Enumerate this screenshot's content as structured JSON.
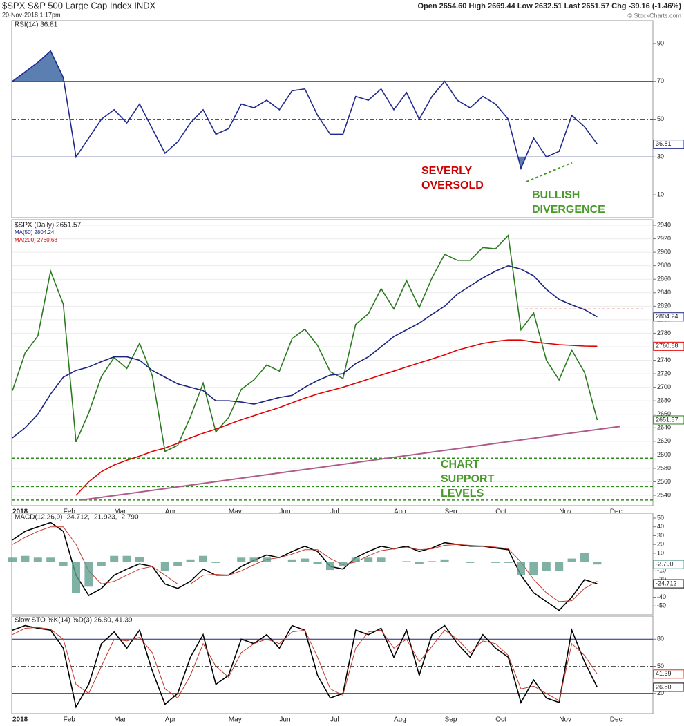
{
  "header": {
    "title": "$SPX S&P 500 Large Cap Index INDX",
    "timestamp": "20-Nov-2018 1:17pm",
    "quote": "Open 2654.60  High 2669.44  Low 2632.51  Last 2651.57  Chg -39.16 (-1.46%)",
    "credit": "© StockCharts.com"
  },
  "chart_data": [
    {
      "type": "line",
      "title": "RSI(14) 36.81",
      "ylim": [
        -2,
        102
      ],
      "yticks": [
        10,
        30,
        50,
        70,
        90
      ],
      "levels": [
        30,
        50,
        70
      ],
      "overbought": 70,
      "oversold": 30,
      "fill_color": "#5b7fb0",
      "series": [
        {
          "name": "RSI(14)",
          "color": "#1f2a8c",
          "last_tag": true,
          "values": [
            70,
            75,
            80,
            86,
            72,
            30,
            40,
            50,
            55,
            48,
            58,
            45,
            32,
            38,
            48,
            55,
            42,
            45,
            58,
            56,
            60,
            55,
            65,
            66,
            52,
            42,
            42,
            62,
            60,
            66,
            55,
            64,
            50,
            62,
            70,
            60,
            56,
            62,
            58,
            50,
            24,
            40,
            30,
            33,
            52,
            46,
            36.81,
            null
          ]
        }
      ],
      "divergence_line": [
        17,
        27
      ],
      "divergence_color": "#4a9a2a",
      "annotations": [
        {
          "text": "SEVERLY OVERSOLD",
          "color": "#cc0000"
        },
        {
          "text": "BULLISH DIVERGENCE",
          "color": "#4a9a2a"
        }
      ]
    },
    {
      "type": "line",
      "ylim": [
        2524.7,
        2948.2
      ],
      "grid": true,
      "legend": "upper left",
      "yticks": [
        2540,
        2560,
        2580,
        2600,
        2620,
        2640,
        2660,
        2680,
        2700,
        2720,
        2740,
        2760,
        2780,
        2800,
        2820,
        2840,
        2860,
        2880,
        2900,
        2920,
        2940
      ],
      "categories": [
        "2018",
        null,
        null,
        null,
        "Feb",
        null,
        null,
        null,
        "Mar",
        null,
        null,
        null,
        "Apr",
        null,
        null,
        null,
        null,
        "May",
        null,
        null,
        null,
        "Jun",
        null,
        null,
        null,
        "Jul",
        null,
        null,
        null,
        null,
        "Aug",
        null,
        null,
        null,
        "Sep",
        null,
        null,
        null,
        "Oct",
        null,
        null,
        null,
        null,
        "Nov",
        null,
        null,
        null,
        "Dec"
      ],
      "series": [
        {
          "name": "$SPX (Daily) 2651.57",
          "color": "#2a7a1e",
          "last_tag": true,
          "values": [
            2695,
            2751,
            2776,
            2872,
            2823,
            2619,
            2662,
            2716,
            2744,
            2728,
            2765,
            2717,
            2605,
            2614,
            2656,
            2706,
            2634,
            2655,
            2697,
            2711,
            2733,
            2724,
            2772,
            2786,
            2762,
            2723,
            2713,
            2793,
            2809,
            2846,
            2816,
            2858,
            2818,
            2862,
            2897,
            2888,
            2888,
            2907,
            2905,
            2925,
            2785,
            2810,
            2740,
            2711,
            2755,
            2722,
            2651.57,
            null
          ]
        },
        {
          "name": "MA(50) 2804.24",
          "color": "#1a237e",
          "last_tag": true,
          "values": [
            2625,
            2640,
            2660,
            2690,
            2715,
            2725,
            2730,
            2738,
            2745,
            2745,
            2740,
            2725,
            2715,
            2705,
            2700,
            2695,
            2680,
            2680,
            2678,
            2675,
            2680,
            2685,
            2688,
            2700,
            2710,
            2718,
            2720,
            2735,
            2745,
            2760,
            2775,
            2785,
            2795,
            2808,
            2820,
            2838,
            2850,
            2862,
            2872,
            2880,
            2875,
            2865,
            2845,
            2830,
            2822,
            2815,
            2804.24,
            null
          ]
        },
        {
          "name": "MA(200) 2760.68",
          "color": "#e00000",
          "last_tag": true,
          "values": [
            null,
            null,
            null,
            null,
            null,
            2540,
            2560,
            2575,
            2585,
            2592,
            2598,
            2605,
            2610,
            2617,
            2625,
            2632,
            2638,
            2645,
            2652,
            2658,
            2664,
            2670,
            2677,
            2684,
            2690,
            2695,
            2700,
            2706,
            2712,
            2718,
            2724,
            2730,
            2736,
            2742,
            2748,
            2755,
            2760,
            2765,
            2768,
            2770,
            2770,
            2767,
            2765,
            2763,
            2762,
            2761,
            2760.68,
            null
          ]
        }
      ],
      "support_levels": [
        2595,
        2553,
        2533
      ],
      "support_color": "#2e8b1e",
      "resistance_level": 2816,
      "resistance_color": "#e05050",
      "trendline": {
        "start": 2533,
        "end": 2642
      },
      "trendline_color": "#b05a8a",
      "annotations": [
        {
          "text": "CHART SUPPORT LEVELS",
          "color": "#4a9a2a"
        }
      ]
    },
    {
      "type": "line",
      "title": "MACD(12,26,9) -24.712, -21.923, -2.790",
      "ylim": [
        -60,
        55.5
      ],
      "yticks": [
        50,
        40,
        30,
        20,
        10,
        -10,
        -20,
        -40,
        -50
      ],
      "series": [
        {
          "name": "MACD",
          "color": "#000000",
          "last_tag": true,
          "values": [
            25,
            35,
            40,
            45,
            35,
            -15,
            -38,
            -30,
            -15,
            -8,
            -2,
            -5,
            -25,
            -30,
            -22,
            -8,
            -15,
            -15,
            -5,
            2,
            8,
            5,
            12,
            18,
            12,
            -5,
            -8,
            5,
            12,
            18,
            15,
            18,
            12,
            16,
            22,
            20,
            18,
            18,
            16,
            14,
            -15,
            -35,
            -45,
            -55,
            -40,
            -20,
            -24.712,
            null
          ]
        },
        {
          "name": "Signal",
          "color": "#c0392b",
          "values": [
            20,
            28,
            35,
            40,
            40,
            20,
            -10,
            -25,
            -22,
            -15,
            -8,
            -5,
            -15,
            -25,
            -25,
            -15,
            -14,
            -15,
            -10,
            -3,
            3,
            5,
            9,
            14,
            14,
            4,
            -3,
            0,
            7,
            13,
            15,
            17,
            14,
            15,
            19,
            20,
            19,
            18,
            17,
            15,
            0,
            -20,
            -35,
            -45,
            -44,
            -30,
            -21.923,
            null
          ]
        },
        {
          "name": "Histogram",
          "type": "bar",
          "color": "#5f9e8f",
          "last_tag": true,
          "values": [
            5,
            7,
            5,
            5,
            -5,
            -35,
            -28,
            -5,
            7,
            7,
            6,
            0,
            -10,
            -5,
            3,
            7,
            -1,
            0,
            5,
            5,
            5,
            0,
            3,
            4,
            -2,
            -9,
            -5,
            5,
            5,
            5,
            0,
            1,
            -2,
            1,
            3,
            0,
            -1,
            0,
            -1,
            -1,
            -15,
            -15,
            -10,
            -10,
            4,
            10,
            -2.79,
            null
          ],
          "value_labels": [
            null,
            null,
            null,
            null,
            null,
            null,
            null,
            null,
            null,
            null,
            null,
            null,
            null,
            null,
            null,
            null,
            null,
            null,
            null,
            null,
            null,
            null,
            null,
            null,
            null,
            null,
            null,
            null,
            null,
            null,
            null,
            null,
            null,
            null,
            null,
            null,
            null,
            null,
            null,
            null,
            null,
            null,
            null,
            null,
            null,
            null,
            "-2.790",
            null
          ]
        }
      ]
    },
    {
      "type": "line",
      "title": "Slow STO %K(14) %D(3) 26.80, 41.39",
      "ylim": [
        -2.3,
        105.4
      ],
      "yticks": [
        80,
        50,
        20
      ],
      "levels": [
        20,
        50,
        80
      ],
      "categories": [
        "2018",
        null,
        null,
        null,
        "Feb",
        null,
        null,
        null,
        "Mar",
        null,
        null,
        null,
        "Apr",
        null,
        null,
        null,
        null,
        "May",
        null,
        null,
        null,
        "Jun",
        null,
        null,
        null,
        "Jul",
        null,
        null,
        null,
        null,
        "Aug",
        null,
        null,
        null,
        "Sep",
        null,
        null,
        null,
        "Oct",
        null,
        null,
        null,
        null,
        "Nov",
        null,
        null,
        null,
        "Dec"
      ],
      "series": [
        {
          "name": "%K",
          "color": "#000000",
          "last_tag": true,
          "values": [
            90,
            95,
            92,
            90,
            70,
            5,
            30,
            75,
            88,
            70,
            90,
            45,
            8,
            20,
            60,
            85,
            30,
            40,
            80,
            75,
            85,
            70,
            95,
            90,
            40,
            15,
            20,
            90,
            85,
            92,
            60,
            90,
            40,
            85,
            95,
            75,
            60,
            85,
            70,
            60,
            10,
            35,
            15,
            10,
            90,
            55,
            26.8,
            null
          ],
          "value_labels": [
            null,
            null,
            null,
            null,
            null,
            null,
            null,
            null,
            null,
            null,
            null,
            null,
            null,
            null,
            null,
            null,
            null,
            null,
            null,
            null,
            null,
            null,
            null,
            null,
            null,
            null,
            null,
            null,
            null,
            null,
            null,
            null,
            null,
            null,
            null,
            null,
            null,
            null,
            null,
            null,
            null,
            null,
            null,
            null,
            null,
            null,
            "26.80",
            null
          ]
        },
        {
          "name": "%D",
          "color": "#c0392b",
          "last_tag": true,
          "values": [
            85,
            92,
            93,
            91,
            80,
            30,
            20,
            50,
            80,
            78,
            82,
            65,
            25,
            15,
            40,
            75,
            50,
            38,
            65,
            75,
            80,
            75,
            88,
            90,
            60,
            25,
            18,
            70,
            88,
            90,
            70,
            80,
            55,
            72,
            90,
            80,
            65,
            78,
            75,
            62,
            25,
            28,
            20,
            12,
            75,
            62,
            41.39,
            null
          ]
        }
      ]
    }
  ]
}
